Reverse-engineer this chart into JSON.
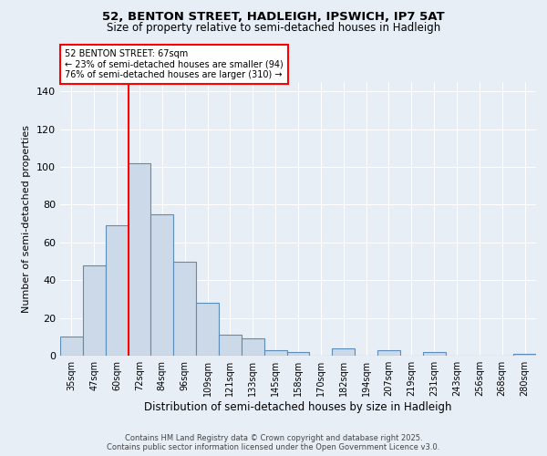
{
  "title1": "52, BENTON STREET, HADLEIGH, IPSWICH, IP7 5AT",
  "title2": "Size of property relative to semi-detached houses in Hadleigh",
  "xlabel": "Distribution of semi-detached houses by size in Hadleigh",
  "ylabel": "Number of semi-detached properties",
  "categories": [
    "35sqm",
    "47sqm",
    "60sqm",
    "72sqm",
    "84sqm",
    "96sqm",
    "109sqm",
    "121sqm",
    "133sqm",
    "145sqm",
    "158sqm",
    "170sqm",
    "182sqm",
    "194sqm",
    "207sqm",
    "219sqm",
    "231sqm",
    "243sqm",
    "256sqm",
    "268sqm",
    "280sqm"
  ],
  "values": [
    10,
    48,
    69,
    102,
    75,
    50,
    28,
    11,
    9,
    3,
    2,
    0,
    4,
    0,
    3,
    0,
    2,
    0,
    0,
    0,
    1
  ],
  "bar_color": "#ccd9e8",
  "bar_edge_color": "#5b8db8",
  "vline_x": 2.5,
  "vline_color": "red",
  "annotation_title": "52 BENTON STREET: 67sqm",
  "annotation_line1": "← 23% of semi-detached houses are smaller (94)",
  "annotation_line2": "76% of semi-detached houses are larger (310) →",
  "annotation_box_color": "red",
  "ylim": [
    0,
    145
  ],
  "yticks": [
    0,
    20,
    40,
    60,
    80,
    100,
    120,
    140
  ],
  "footer1": "Contains HM Land Registry data © Crown copyright and database right 2025.",
  "footer2": "Contains public sector information licensed under the Open Government Licence v3.0.",
  "bg_color": "#e8eef6",
  "plot_bg_color": "#e8eef6"
}
